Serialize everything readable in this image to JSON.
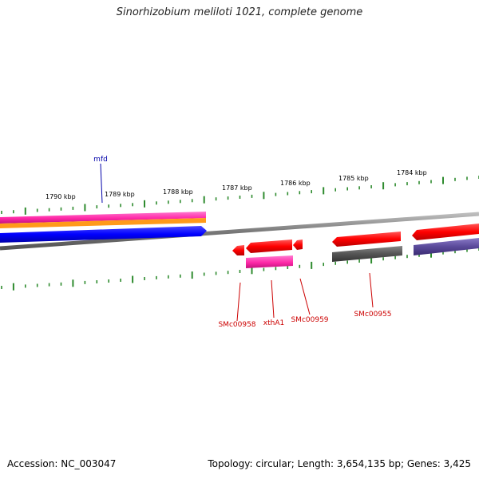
{
  "title": "Sinorhizobium meliloti 1021, complete genome",
  "footer": {
    "accession": "Accession: NC_003047",
    "summary": "Topology: circular; Length: 3,654,135 bp; Genes: 3,425"
  },
  "colors": {
    "backbone": "#8a8a8a",
    "tick": "#2e8b2e",
    "top_label": "#0000aa",
    "bottom_label": "#cc0000",
    "red": "#ff1010",
    "magenta": "#ff2aa8",
    "orange": "#ff9a1a",
    "blue": "#0000ff",
    "gray": "#555555",
    "purple": "#5a4a9a"
  },
  "scale_labels": [
    "1790 kbp",
    "1789 kbp",
    "1788 kbp",
    "1787 kbp",
    "1786 kbp",
    "1785 kbp",
    "1784 kbp"
  ],
  "genes": {
    "top": [
      "mfd"
    ],
    "bottom": [
      "SMc00958",
      "xthA1",
      "SMc00959",
      "SMc00955"
    ]
  }
}
